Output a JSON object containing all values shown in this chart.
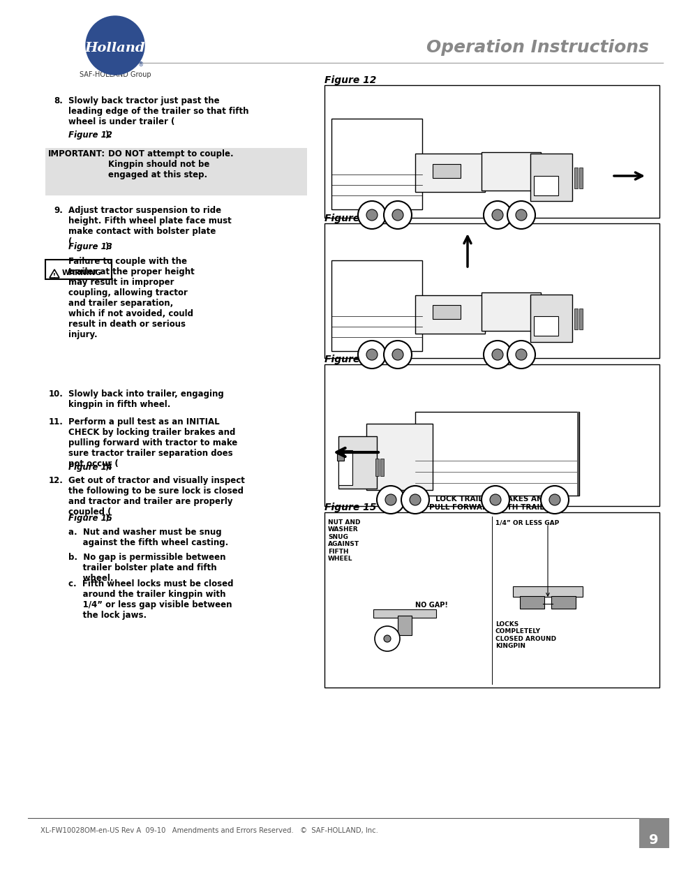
{
  "title": "Operation Instructions",
  "header_sub": "SAF-HOLLAND Group",
  "footer_text": "XL-FW10028OM-en-US Rev A  09-10   Amendments and Errors Reserved.   ©  SAF-HOLLAND, Inc.",
  "page_number": "9",
  "bg_color": "#ffffff",
  "header_line_color": "#aaaaaa",
  "title_color": "#888888",
  "body_color": "#000000",
  "logo_circle_color": "#2e4d8e",
  "important_bg": "#e0e0e0",
  "warning_border": "#000000",
  "figure_border": "#000000",
  "figure_label_color": "#000000",
  "important_label": "IMPORTANT:",
  "important_text": "DO NOT attempt to couple.\nKingpin should not be\nengaged at this step.",
  "step9_italic": "Figure 13",
  "warning_text": "Failure to couple with the\ntrailer at the proper height\nmay result in improper\ncoupling, allowing tractor\nand trailer separation,\nwhich if not avoided, could\nresult in death or serious\ninjury.",
  "step11_italic": "Figure 14",
  "step12_italic": "Figure 15",
  "step12a_text": "a.  Nut and washer must be snug\n     against the fifth wheel casting.",
  "step12b_text": "b.  No gap is permissible between\n     trailer bolster plate and fifth\n     wheel.",
  "step12c_text": "c.  Fifth wheel locks must be closed\n     around the trailer kingpin with\n     1/4” or less gap visible between\n     the lock jaws.",
  "fig12_label": "Figure 12",
  "fig13_label": "Figure 13",
  "fig14_label": "Figure 14",
  "fig14_caption": "LOCK TRAILER BRAKES AND\nPULL FORWARD WITH TRAILER",
  "fig15_label": "Figure 15",
  "fig15_left_text": "NUT AND\nWASHER\nSNUG\nAGAINST\nFIFTH\nWHEEL",
  "fig15_no_gap": "NO GAP!",
  "fig15_right_top": "1/4” OR LESS GAP",
  "fig15_locks": "LOCKS\nCOMPLETELY\nCLOSED AROUND\nKINGPIN",
  "footer_line_color": "#555555",
  "page_tab_color": "#888888"
}
